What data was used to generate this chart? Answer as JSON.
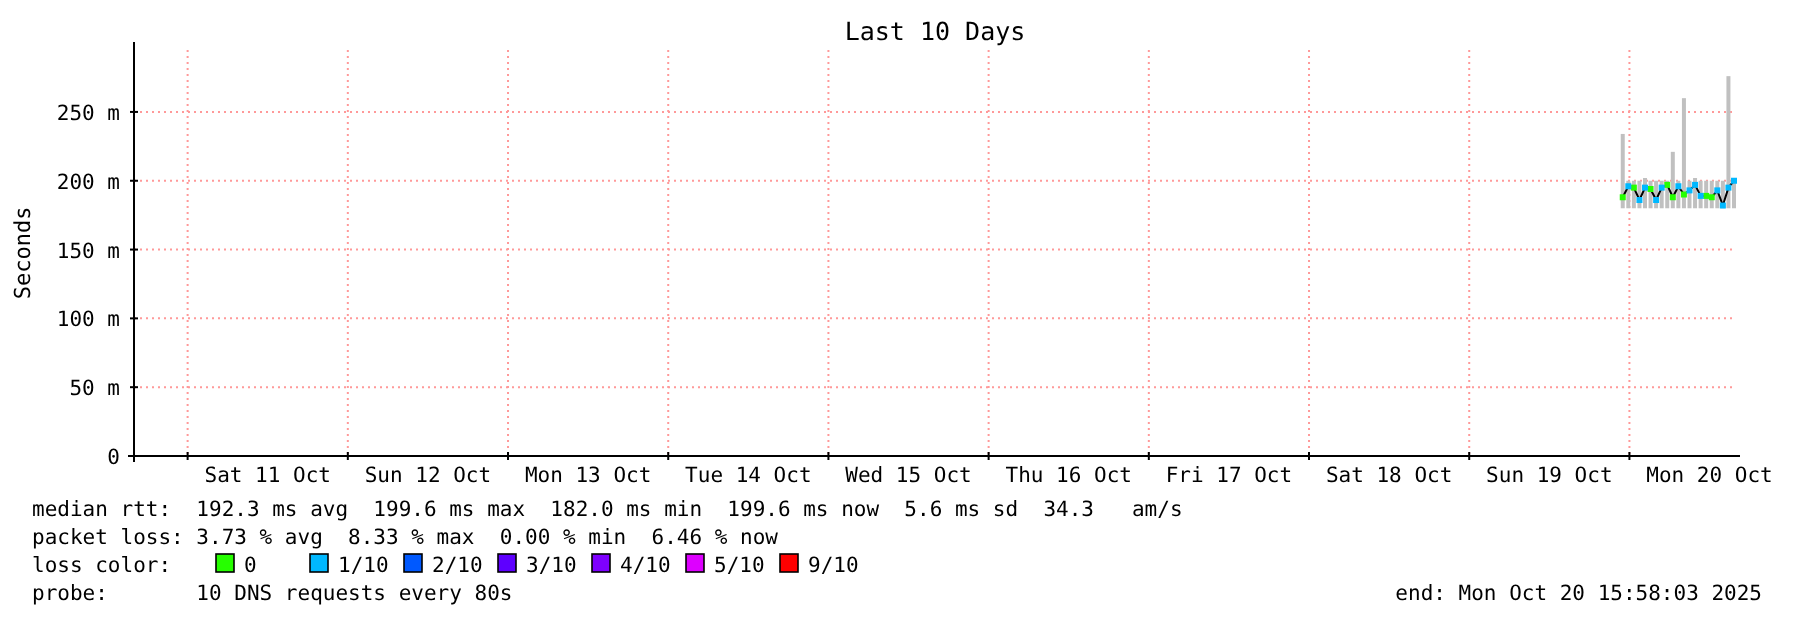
{
  "chart_data": {
    "type": "line",
    "title": "Last 10 Days",
    "ylabel": "Seconds",
    "x": [
      "2025-10-19T23:00",
      "2025-10-19T23:50",
      "2025-10-20T00:40",
      "2025-10-20T01:30",
      "2025-10-20T02:20",
      "2025-10-20T03:10",
      "2025-10-20T04:00",
      "2025-10-20T04:50",
      "2025-10-20T05:40",
      "2025-10-20T06:30",
      "2025-10-20T07:20",
      "2025-10-20T08:10",
      "2025-10-20T09:00",
      "2025-10-20T09:50",
      "2025-10-20T10:40",
      "2025-10-20T11:30",
      "2025-10-20T12:20",
      "2025-10-20T13:10",
      "2025-10-20T14:00",
      "2025-10-20T14:50",
      "2025-10-20T15:40"
    ],
    "xlim": [
      "2025-10-10T15:58",
      "2025-10-20T15:58"
    ],
    "xticks": [
      {
        "value": "2025-10-11T00:00",
        "label": null
      },
      {
        "value": "2025-10-11T12:00",
        "label": "Sat 11 Oct"
      },
      {
        "value": "2025-10-12T00:00",
        "label": null
      },
      {
        "value": "2025-10-12T12:00",
        "label": "Sun 12 Oct"
      },
      {
        "value": "2025-10-13T00:00",
        "label": null
      },
      {
        "value": "2025-10-13T12:00",
        "label": "Mon 13 Oct"
      },
      {
        "value": "2025-10-14T00:00",
        "label": null
      },
      {
        "value": "2025-10-14T12:00",
        "label": "Tue 14 Oct"
      },
      {
        "value": "2025-10-15T00:00",
        "label": null
      },
      {
        "value": "2025-10-15T12:00",
        "label": "Wed 15 Oct"
      },
      {
        "value": "2025-10-16T00:00",
        "label": null
      },
      {
        "value": "2025-10-16T12:00",
        "label": "Thu 16 Oct"
      },
      {
        "value": "2025-10-17T00:00",
        "label": null
      },
      {
        "value": "2025-10-17T12:00",
        "label": "Fri 17 Oct"
      },
      {
        "value": "2025-10-18T00:00",
        "label": null
      },
      {
        "value": "2025-10-18T12:00",
        "label": "Sat 18 Oct"
      },
      {
        "value": "2025-10-19T00:00",
        "label": null
      },
      {
        "value": "2025-10-19T12:00",
        "label": "Sun 19 Oct"
      },
      {
        "value": "2025-10-20T00:00",
        "label": null
      },
      {
        "value": "2025-10-20T12:00",
        "label": "Mon 20 Oct"
      }
    ],
    "ylim": [
      0,
      295
    ],
    "yticks": [
      0,
      {
        "value": 50,
        "label": "50 m"
      },
      {
        "value": 100,
        "label": "100 m"
      },
      {
        "value": 150,
        "label": "150 m"
      },
      {
        "value": 200,
        "label": "200 m"
      },
      {
        "value": 250,
        "label": "250 m"
      }
    ],
    "grid": true,
    "legend": "bottom",
    "legend_title": "loss color:",
    "series": [
      {
        "type": "bar",
        "color": "#c0c0c0",
        "base": [
          180,
          180,
          180,
          180,
          180,
          180,
          180,
          180,
          180,
          180,
          180,
          180,
          180,
          180,
          180,
          180,
          180,
          180,
          180,
          180,
          180
        ],
        "values": [
          54,
          20,
          20,
          20,
          22,
          20,
          20,
          20,
          20,
          41,
          20,
          80,
          20,
          22,
          20,
          20,
          20,
          20,
          20,
          96,
          22
        ]
      },
      {
        "color": "#000000",
        "values": [
          188,
          196,
          195,
          186,
          195,
          194,
          186,
          195,
          197,
          188,
          196,
          190,
          193,
          197,
          189,
          189,
          188,
          193,
          182,
          195,
          200
        ]
      },
      {
        "type": "scatter",
        "name": "0",
        "color": "#26ff00",
        "values": [
          188,
          null,
          195,
          null,
          null,
          194,
          null,
          null,
          197,
          188,
          null,
          190,
          null,
          null,
          null,
          189,
          188,
          null,
          null,
          null,
          null
        ]
      },
      {
        "type": "scatter",
        "name": "1/10",
        "color": "#00b8ff",
        "values": [
          null,
          196,
          null,
          186,
          195,
          null,
          186,
          195,
          null,
          null,
          196,
          null,
          193,
          197,
          189,
          null,
          null,
          193,
          182,
          195,
          200
        ]
      },
      {
        "type": "scatter",
        "name": "2/10",
        "color": "#0059ff",
        "values": [
          null,
          null,
          null,
          null,
          null,
          null,
          null,
          null,
          null,
          null,
          null,
          null,
          null,
          null,
          null,
          null,
          null,
          null,
          null,
          null,
          null
        ]
      },
      {
        "type": "scatter",
        "name": "3/10",
        "color": "#5e00ff",
        "values": [
          null,
          null,
          null,
          null,
          null,
          null,
          null,
          null,
          null,
          null,
          null,
          null,
          null,
          null,
          null,
          null,
          null,
          null,
          null,
          null,
          null
        ]
      },
      {
        "type": "scatter",
        "name": "4/10",
        "color": "#7e00ff",
        "values": [
          null,
          null,
          null,
          null,
          null,
          null,
          null,
          null,
          null,
          null,
          null,
          null,
          null,
          null,
          null,
          null,
          null,
          null,
          null,
          null,
          null
        ]
      },
      {
        "type": "scatter",
        "name": "5/10",
        "color": "#dd00ff",
        "values": [
          null,
          null,
          null,
          null,
          null,
          null,
          null,
          null,
          null,
          null,
          null,
          null,
          null,
          null,
          null,
          null,
          null,
          null,
          null,
          null,
          null
        ]
      },
      {
        "type": "scatter",
        "name": "9/10",
        "color": "#ff0000",
        "values": [
          null,
          null,
          null,
          null,
          null,
          null,
          null,
          null,
          null,
          null,
          null,
          null,
          null,
          null,
          null,
          null,
          null,
          null,
          null,
          null,
          null
        ]
      }
    ],
    "annotations": [
      "median rtt:  192.3 ms avg  199.6 ms max  182.0 ms min  199.6 ms now  5.6 ms sd  34.3   am/s",
      "packet loss: 3.73 % avg  8.33 % max  0.00 % min  6.46 % now",
      "probe:       10 DNS requests every 80s",
      "end: Mon Oct 20 15:58:03 2025"
    ]
  }
}
